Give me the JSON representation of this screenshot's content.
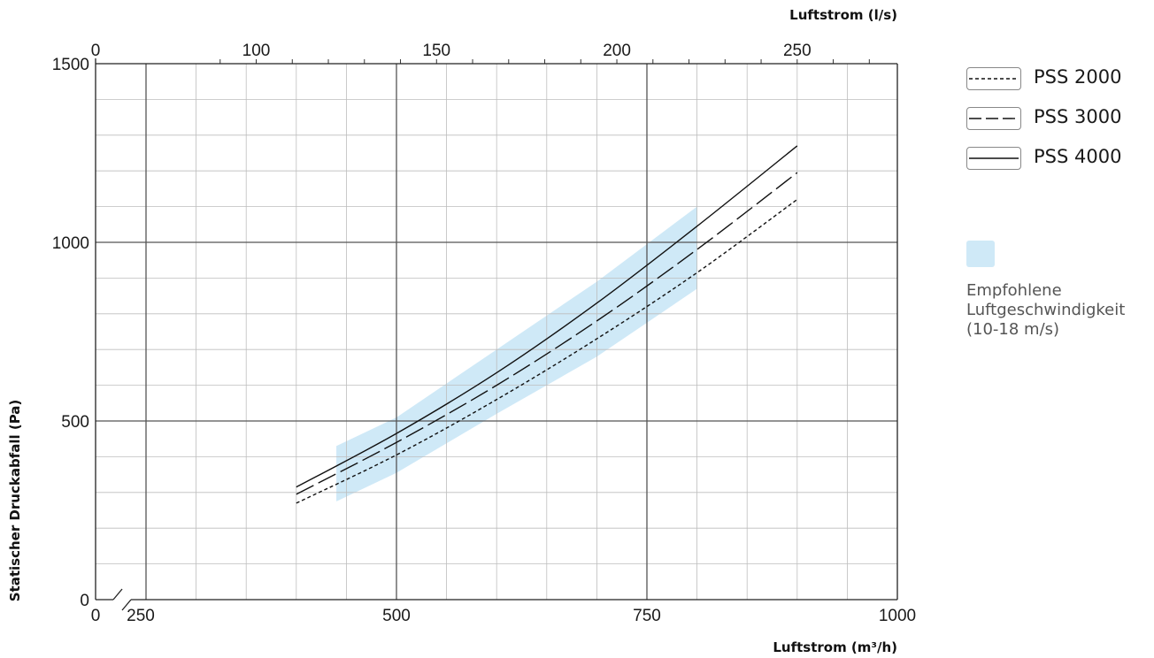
{
  "chart_data": {
    "type": "line",
    "xlabel": "Luftstrom (m³/h)",
    "x2label": "Luftstrom (l/s)",
    "ylabel": "Statischer Druckabfall (Pa)",
    "x_ticks": [
      "0",
      "250",
      "500",
      "750",
      "1000"
    ],
    "x_tick_values": [
      0,
      250,
      500,
      750,
      1000
    ],
    "x2_ticks": [
      "0",
      "100",
      "150",
      "200",
      "250"
    ],
    "x2_tick_values": [
      0,
      100,
      150,
      200,
      250
    ],
    "y_ticks": [
      "0",
      "500",
      "1000",
      "1500"
    ],
    "y_tick_values": [
      0,
      500,
      1000,
      1500
    ],
    "xlim": [
      200,
      1000
    ],
    "ylim": [
      0,
      1500
    ],
    "axis_break": true,
    "grid": true,
    "legend_position": "right",
    "series": [
      {
        "name": "PSS 2000",
        "style": "dotted",
        "x": [
          400,
          500,
          600,
          700,
          800,
          900
        ],
        "y": [
          270,
          405,
          560,
          730,
          915,
          1120
        ]
      },
      {
        "name": "PSS 3000",
        "style": "dashed",
        "x": [
          400,
          500,
          600,
          700,
          800,
          900
        ],
        "y": [
          295,
          440,
          600,
          780,
          980,
          1195
        ]
      },
      {
        "name": "PSS 4000",
        "style": "solid",
        "x": [
          400,
          500,
          600,
          700,
          800,
          900
        ],
        "y": [
          315,
          465,
          635,
          830,
          1045,
          1270
        ]
      }
    ],
    "band": {
      "label": "Empfohlene Luftgeschwindigkeit (10-18 m/s)",
      "color": "#cfe9f7",
      "x": [
        440,
        500,
        600,
        700,
        800
      ],
      "y_low": [
        275,
        355,
        520,
        680,
        870
      ],
      "y_high": [
        430,
        510,
        700,
        890,
        1100
      ]
    }
  },
  "legend": {
    "items": [
      {
        "label": "PSS 2000",
        "dash": "4,3"
      },
      {
        "label": "PSS 3000",
        "dash": "14,5"
      },
      {
        "label": "PSS 4000",
        "dash": ""
      }
    ],
    "band_lines": [
      "Empfohlene",
      "Luftgeschwindigkeit",
      "(10-18 m/s)"
    ]
  }
}
